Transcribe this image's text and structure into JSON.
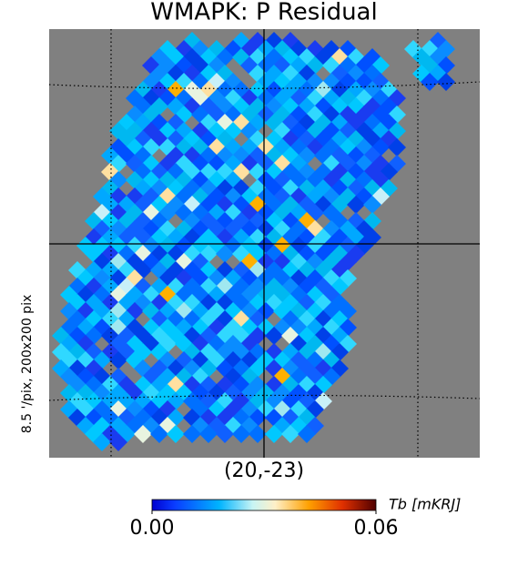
{
  "chart_data": {
    "type": "map",
    "title": "WMAPK: P Residual",
    "center_label": "(20,-23)",
    "side_label": "8.5 '/pix,   200x200 pix",
    "colorbar_label": "Tb [mKRJ]",
    "clim": [
      0,
      0.06
    ],
    "cticks": [
      {
        "value": 0,
        "label": "0.00"
      },
      {
        "value": 0.06,
        "label": "0.06"
      }
    ]
  }
}
